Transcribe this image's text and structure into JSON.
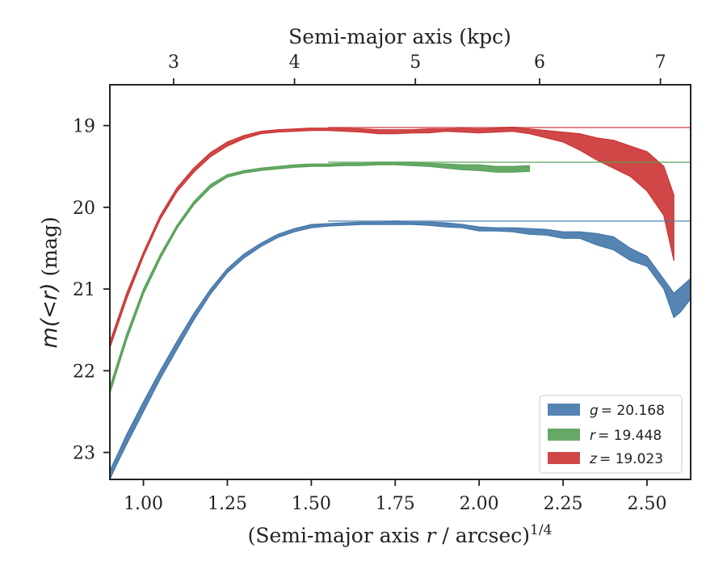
{
  "chart_data": {
    "type": "area",
    "title": "",
    "xlabel": "(Semi-major axis r / arcsec)^(1/4)",
    "xlabel_parts": {
      "before": "(Semi-major axis ",
      "var": "r",
      "mid": " / arcsec)",
      "sup": "1/4"
    },
    "top_xlabel": "Semi-major axis (kpc)",
    "ylabel": "m(<r) (mag)",
    "ylabel_parts": {
      "math": "m(<r)",
      "unit": " (mag)"
    },
    "xlim": [
      0.9,
      2.63
    ],
    "ylim": [
      23.33,
      18.5
    ],
    "y_inverted": true,
    "xticks": [
      1.0,
      1.25,
      1.5,
      1.75,
      2.0,
      2.25,
      2.5
    ],
    "xtick_labels": [
      "1.00",
      "1.25",
      "1.50",
      "1.75",
      "2.00",
      "2.25",
      "2.50"
    ],
    "yticks": [
      19,
      20,
      21,
      22,
      23
    ],
    "ytick_labels": [
      "19",
      "20",
      "21",
      "22",
      "23"
    ],
    "top_ticks_kpc": [
      3,
      4,
      5,
      6,
      7
    ],
    "top_tick_labels": [
      "3",
      "4",
      "5",
      "6",
      "7"
    ],
    "top_tick_positions": [
      1.09,
      1.45,
      1.81,
      2.18,
      2.54
    ],
    "grid": false,
    "legend_position": "lower-right",
    "series": [
      {
        "name": "g = 20.168",
        "legend_var": "g",
        "legend_value": "= 20.168",
        "color": "#4477aa",
        "asymptote": 20.168,
        "x": [
          0.9,
          0.92,
          0.95,
          1.0,
          1.05,
          1.1,
          1.15,
          1.2,
          1.25,
          1.3,
          1.35,
          1.4,
          1.45,
          1.5,
          1.55,
          1.6,
          1.65,
          1.7,
          1.75,
          1.8,
          1.85,
          1.9,
          1.95,
          2.0,
          2.05,
          2.1,
          2.15,
          2.2,
          2.25,
          2.3,
          2.35,
          2.4,
          2.45,
          2.5,
          2.55,
          2.58,
          2.6,
          2.63
        ],
        "lower": [
          23.22,
          23.05,
          22.78,
          22.38,
          22.0,
          21.64,
          21.3,
          21.0,
          20.75,
          20.57,
          20.44,
          20.33,
          20.26,
          20.21,
          20.2,
          20.19,
          20.18,
          20.18,
          20.17,
          20.18,
          20.18,
          20.19,
          20.21,
          20.24,
          20.25,
          20.25,
          20.26,
          20.27,
          20.3,
          20.3,
          20.32,
          20.36,
          20.5,
          20.6,
          20.88,
          21.05,
          20.98,
          20.87
        ],
        "upper": [
          23.33,
          23.15,
          22.9,
          22.5,
          22.1,
          21.74,
          21.38,
          21.06,
          20.8,
          20.62,
          20.48,
          20.37,
          20.3,
          20.25,
          20.23,
          20.22,
          20.21,
          20.21,
          20.21,
          20.21,
          20.22,
          20.24,
          20.25,
          20.29,
          20.29,
          20.3,
          20.33,
          20.34,
          20.38,
          20.38,
          20.46,
          20.52,
          20.65,
          20.72,
          21.0,
          21.35,
          21.28,
          21.12
        ]
      },
      {
        "name": "r = 19.448",
        "legend_var": "r",
        "legend_value": "= 19.448",
        "color": "#55a055",
        "asymptote": 19.448,
        "x": [
          0.9,
          0.95,
          1.0,
          1.05,
          1.1,
          1.15,
          1.2,
          1.25,
          1.3,
          1.35,
          1.4,
          1.45,
          1.5,
          1.55,
          1.6,
          1.65,
          1.7,
          1.75,
          1.8,
          1.85,
          1.9,
          1.95,
          2.0,
          2.05,
          2.1,
          2.15
        ],
        "lower": [
          22.2,
          21.55,
          21.0,
          20.58,
          20.22,
          19.93,
          19.72,
          19.6,
          19.55,
          19.52,
          19.5,
          19.48,
          19.47,
          19.47,
          19.46,
          19.46,
          19.45,
          19.45,
          19.45,
          19.46,
          19.47,
          19.48,
          19.48,
          19.5,
          19.5,
          19.49
        ],
        "upper": [
          22.28,
          21.62,
          21.06,
          20.63,
          20.26,
          19.97,
          19.76,
          19.63,
          19.58,
          19.55,
          19.53,
          19.51,
          19.5,
          19.5,
          19.49,
          19.49,
          19.48,
          19.48,
          19.49,
          19.5,
          19.52,
          19.54,
          19.55,
          19.57,
          19.57,
          19.56
        ]
      },
      {
        "name": "z = 19.023",
        "legend_var": "z",
        "legend_value": "= 19.023",
        "color": "#cc3333",
        "asymptote": 19.023,
        "x": [
          0.9,
          0.95,
          1.0,
          1.05,
          1.1,
          1.15,
          1.2,
          1.25,
          1.3,
          1.35,
          1.4,
          1.45,
          1.5,
          1.55,
          1.6,
          1.65,
          1.7,
          1.75,
          1.8,
          1.85,
          1.9,
          1.95,
          2.0,
          2.05,
          2.1,
          2.15,
          2.2,
          2.25,
          2.3,
          2.35,
          2.4,
          2.45,
          2.5,
          2.55,
          2.58
        ],
        "lower": [
          21.65,
          21.05,
          20.55,
          20.1,
          19.76,
          19.52,
          19.33,
          19.2,
          19.12,
          19.07,
          19.05,
          19.04,
          19.03,
          19.03,
          19.03,
          19.04,
          19.05,
          19.05,
          19.05,
          19.04,
          19.04,
          19.03,
          19.04,
          19.03,
          19.02,
          19.04,
          19.06,
          19.08,
          19.1,
          19.15,
          19.18,
          19.25,
          19.32,
          19.5,
          19.85
        ],
        "upper": [
          21.72,
          21.12,
          20.6,
          20.15,
          19.81,
          19.57,
          19.38,
          19.25,
          19.16,
          19.1,
          19.08,
          19.07,
          19.06,
          19.06,
          19.07,
          19.08,
          19.1,
          19.1,
          19.09,
          19.09,
          19.07,
          19.08,
          19.09,
          19.08,
          19.07,
          19.1,
          19.15,
          19.2,
          19.3,
          19.42,
          19.52,
          19.62,
          19.8,
          20.1,
          20.65
        ]
      }
    ]
  }
}
